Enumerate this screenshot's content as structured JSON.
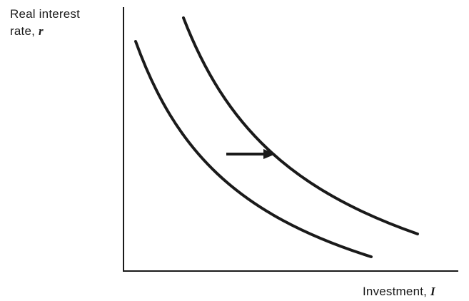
{
  "axes": {
    "y_label_line1": "Real interest",
    "y_label_line2_text": "rate, ",
    "y_label_line2_var": "r",
    "x_label_text": "Investment, ",
    "x_label_var": "I"
  },
  "curves": [
    {
      "name": "investment-curve-original"
    },
    {
      "name": "investment-curve-shifted"
    }
  ],
  "arrow": {
    "direction": "right"
  },
  "colors": {
    "ink": "#1a1a1a",
    "background": "#ffffff"
  }
}
